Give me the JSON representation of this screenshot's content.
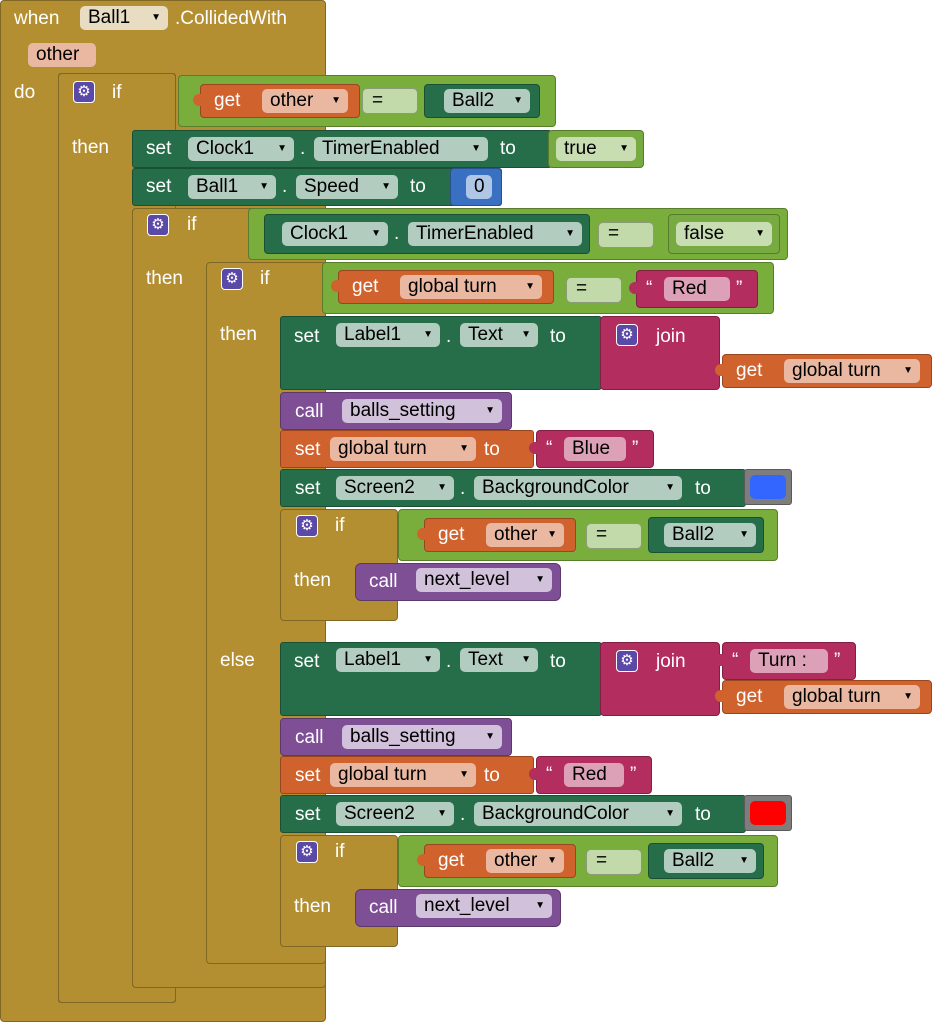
{
  "colors": {
    "event": "#b38f32",
    "control": "#7aae3c",
    "text": "#b32d5e",
    "variable": "#d0622d",
    "component_get": "#266e4a",
    "component_set": "#266e4a",
    "logic": "#77ab41",
    "math": "#3a70c2",
    "procedure": "#7e4f95",
    "swatch_blue": "#3366ff",
    "swatch_red": "#ff0000"
  },
  "event": {
    "when": "when",
    "component": "Ball1",
    "event_name": ".CollidedWith",
    "param": "other",
    "do": "do"
  },
  "kw": {
    "if": "if",
    "then": "then",
    "else": "else",
    "set": "set",
    "get": "get",
    "to": "to",
    "call": "call",
    "join": "join",
    "eq": "=",
    "dot": ".",
    "open_q": "“",
    "close_q": "”"
  },
  "values": {
    "other": "other",
    "ball2": "Ball2",
    "clock1": "Clock1",
    "timer_enabled": "TimerEnabled",
    "true": "true",
    "false": "false",
    "ball1": "Ball1",
    "speed": "Speed",
    "zero": "0",
    "global_turn": "global turn",
    "red": "Red",
    "blue": "Blue",
    "label1": "Label1",
    "text": "Text",
    "balls_setting": "balls_setting",
    "screen2": "Screen2",
    "bg_color": "BackgroundColor",
    "next_level": "next_level",
    "turn_prefix": "Turn : "
  },
  "icons": {
    "gear": "gear-icon",
    "dropdown": "dropdown-arrow-icon"
  }
}
